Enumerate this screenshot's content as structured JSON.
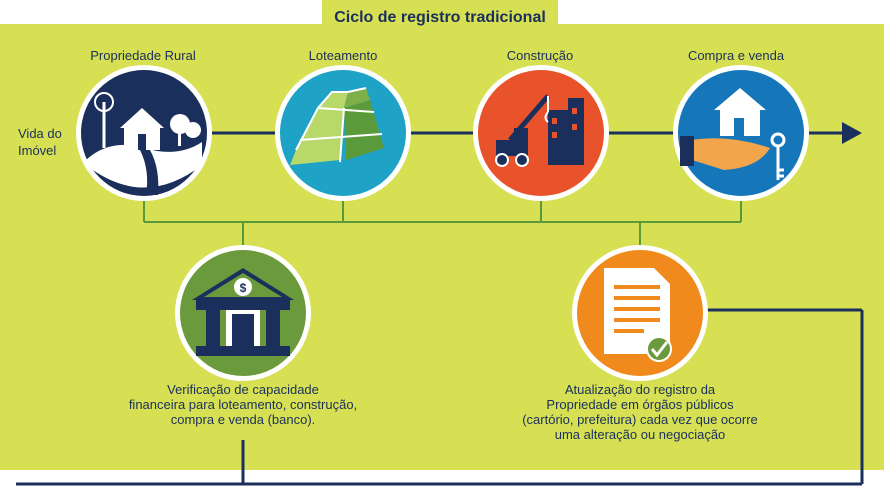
{
  "title": "Ciclo de registro tradicional",
  "axis_label_line1": "Vida do",
  "axis_label_line2": "Imóvel",
  "stages": [
    {
      "label": "Propriedade Rural",
      "icon": "farm-house-icon",
      "color": "#1b2f5c"
    },
    {
      "label": "Loteamento",
      "icon": "land-plots-icon",
      "color": "#1ea3c6"
    },
    {
      "label": "Construção",
      "icon": "construction-crane-icon",
      "color": "#e8532c"
    },
    {
      "label": "Compra e venda",
      "icon": "house-key-hand-icon",
      "color": "#1577b9"
    }
  ],
  "processes": [
    {
      "icon": "bank-icon",
      "color": "#6b9a3c",
      "lines": [
        "Verificação de capacidade",
        "financeira para loteamento, construção,",
        "compra e venda (banco)."
      ]
    },
    {
      "icon": "document-check-icon",
      "color": "#f08a1c",
      "lines": [
        "Atualização do registro da",
        "Propriedade em órgãos públicos",
        "(cartório, prefeitura) cada vez que ocorre",
        "uma alteração ou negociação"
      ]
    }
  ],
  "colors": {
    "panel": "#d6e052",
    "text": "#1b2f5c",
    "connector": "#5b9a3a",
    "line": "#1b2f5c"
  }
}
